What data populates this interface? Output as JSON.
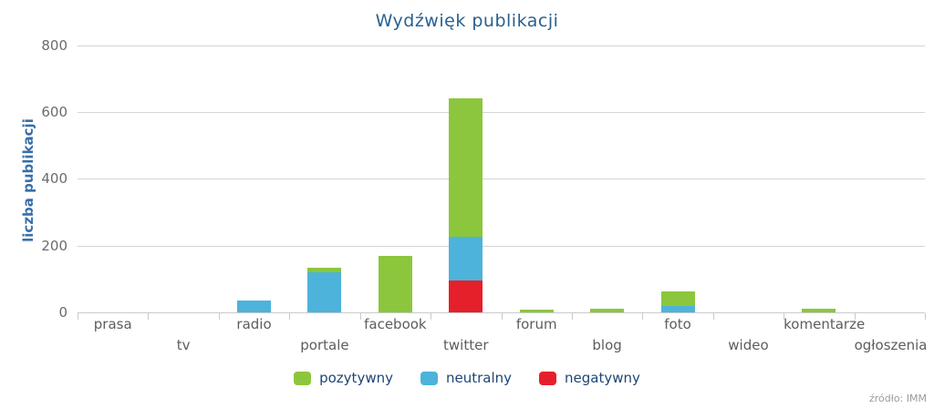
{
  "title": "Wydźwięk publikacji",
  "source": "źródło: IMM",
  "colors": {
    "pozytywny": "#8cc63c",
    "neutralny": "#4db3da",
    "negatywny": "#e5202a",
    "title_text": "#29608f",
    "legend_text": "#1d4577",
    "y_axis_title_text": "#3a6fa9",
    "axis_tick_text": "#6a6b6d",
    "gridline": "#d4d5d7"
  },
  "chart_data": {
    "type": "bar",
    "stacked": true,
    "title": "Wydźwięk publikacji",
    "xlabel": "",
    "ylabel": "liczba publikacji",
    "ylim": [
      0,
      800
    ],
    "yticks": [
      0,
      200,
      400,
      600,
      800
    ],
    "grid": true,
    "legend_position": "bottom",
    "categories": [
      "prasa",
      "tv",
      "radio",
      "portale",
      "facebook",
      "twitter",
      "forum",
      "blog",
      "foto",
      "wideo",
      "komentarze",
      "ogłoszenia"
    ],
    "series": [
      {
        "name": "pozytywny",
        "color": "#8cc63c",
        "values": [
          0,
          0,
          0,
          15,
          170,
          415,
          8,
          10,
          45,
          0,
          12,
          0
        ]
      },
      {
        "name": "neutralny",
        "color": "#4db3da",
        "values": [
          0,
          0,
          35,
          120,
          0,
          130,
          0,
          0,
          20,
          0,
          0,
          0
        ]
      },
      {
        "name": "negatywny",
        "color": "#e5202a",
        "values": [
          0,
          0,
          0,
          0,
          0,
          95,
          0,
          0,
          0,
          0,
          0,
          0
        ]
      }
    ],
    "stack_order_bottom_to_top": [
      "negatywny",
      "neutralny",
      "pozytywny"
    ]
  }
}
